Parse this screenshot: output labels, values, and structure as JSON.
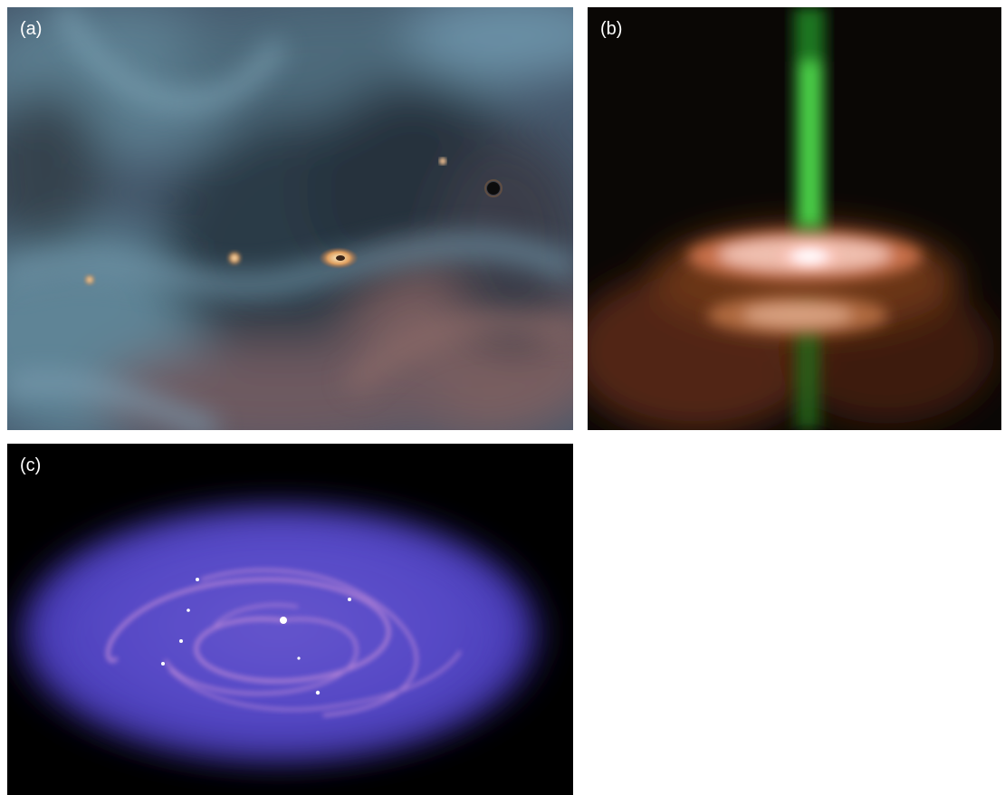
{
  "figure": {
    "panels": [
      {
        "id": "a",
        "label": "(a)"
      },
      {
        "id": "b",
        "label": "(b)"
      },
      {
        "id": "c",
        "label": "(c)"
      }
    ]
  },
  "colors": {
    "nebula_blue": "#5a7a8c",
    "nebula_dark": "#2a3540",
    "nebula_pink": "#8a6a6a",
    "jet_green": "#3fb83a",
    "disk_orange": "#c0603a",
    "disk_core": "#ffffff",
    "sim_disk_purple": "#5a4cc8",
    "sim_arm_pink": "#c088d8"
  }
}
